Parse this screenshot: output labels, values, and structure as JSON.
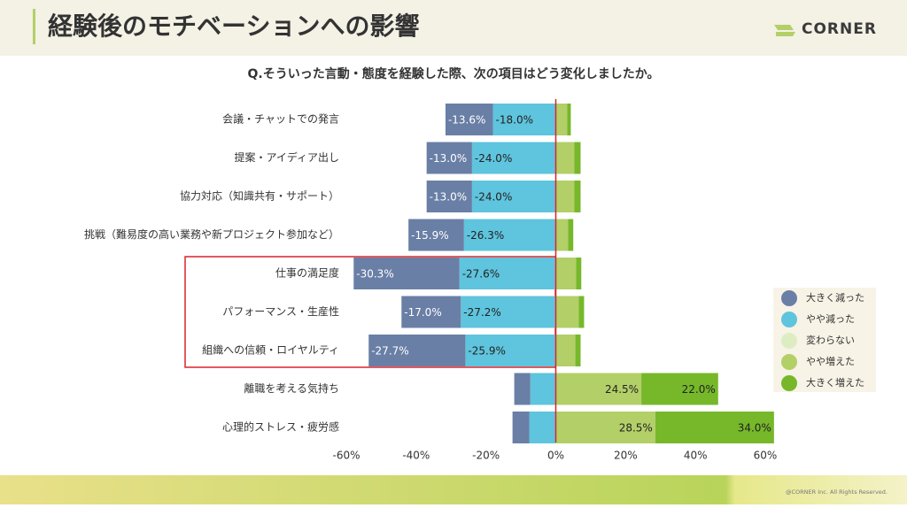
{
  "header": {
    "title": "経験後のモチベーションへの影響",
    "logo": "CORNER"
  },
  "footer": {
    "copyright": "@CORNER Inc. All Rights Reserved."
  },
  "chart_data": {
    "type": "diverging-bar",
    "orientation": "horizontal",
    "title": "Q.そういった言動・態度を経験した際、次の項目はどう変化しましたか。",
    "categories": [
      "会議・チャットでの発言",
      "提案・アイディア出し",
      "協力対応（知識共有・サポート）",
      "挑戦（難易度の高い業務や新プロジェクト参加など）",
      "仕事の満足度",
      "パフォーマンス・生産性",
      "組織への信頼・ロイヤルティ",
      "離職を考える気持ち",
      "心理的ストレス・疲労感"
    ],
    "series": [
      {
        "name": "大きく減った",
        "color": "#6a7fa6",
        "values": [
          -13.6,
          -13.0,
          -13.0,
          -15.9,
          -30.3,
          -17.0,
          -27.7,
          -4.6,
          -4.8
        ],
        "value_labels": [
          "-13.6%",
          "-13.0%",
          "-13.0%",
          "-15.9%",
          "-30.3%",
          "-17.0%",
          "-27.7%",
          null,
          null
        ]
      },
      {
        "name": "やや減った",
        "color": "#5fc4dd",
        "values": [
          -18.0,
          -24.0,
          -24.0,
          -26.3,
          -27.6,
          -27.2,
          -25.9,
          -7.3,
          -7.6
        ],
        "value_labels": [
          "-18.0%",
          "-24.0%",
          "-24.0%",
          "-26.3%",
          "-27.6%",
          "-27.2%",
          "-25.9%",
          null,
          null
        ]
      },
      {
        "name": "変わらない",
        "color": "#ddedc2",
        "values": [
          null,
          null,
          null,
          null,
          null,
          null,
          null,
          null,
          null
        ],
        "value_labels": [
          null,
          null,
          null,
          null,
          null,
          null,
          null,
          null,
          null
        ]
      },
      {
        "name": "やや増えた",
        "color": "#b3cf68",
        "values": [
          3.3,
          5.3,
          5.3,
          3.5,
          5.8,
          6.6,
          5.6,
          24.5,
          28.5
        ],
        "value_labels": [
          null,
          null,
          null,
          null,
          null,
          null,
          null,
          "24.5%",
          "28.5%"
        ]
      },
      {
        "name": "大きく増えた",
        "color": "#76b82a",
        "values": [
          1.0,
          1.8,
          1.8,
          1.5,
          1.5,
          1.5,
          1.5,
          22.0,
          34.0
        ],
        "value_labels": [
          null,
          null,
          null,
          null,
          null,
          null,
          null,
          "22.0%",
          "34.0%"
        ]
      }
    ],
    "xlim": [
      -60,
      60
    ],
    "xticks": [
      {
        "value": -60,
        "label": "-60%"
      },
      {
        "value": -40,
        "label": "-40%"
      },
      {
        "value": -20,
        "label": "-20%"
      },
      {
        "value": 0,
        "label": "0%"
      },
      {
        "value": 20,
        "label": "20%"
      },
      {
        "value": 40,
        "label": "40%"
      },
      {
        "value": 60,
        "label": "60%"
      }
    ],
    "zero_line_color": "#d9232a",
    "legend": "right"
  }
}
